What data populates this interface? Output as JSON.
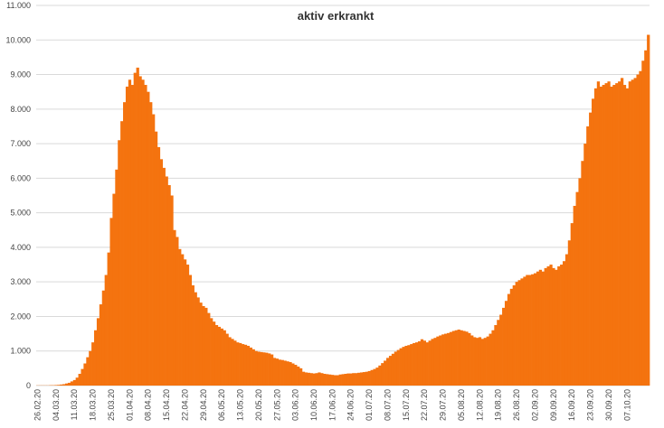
{
  "chart_data": {
    "type": "bar",
    "title": "aktiv erkrankt",
    "xlabel": "",
    "ylabel": "",
    "ylim": [
      0,
      11000
    ],
    "yticks": [
      0,
      1000,
      2000,
      3000,
      4000,
      5000,
      6000,
      7000,
      8000,
      9000,
      10000,
      11000
    ],
    "ytick_labels": [
      "0",
      "1.000",
      "2.000",
      "3.000",
      "4.000",
      "5.000",
      "6.000",
      "7.000",
      "8.000",
      "9.000",
      "10.000",
      "11.000"
    ],
    "xtick_labels": [
      "26.02.20",
      "04.03.20",
      "11.03.20",
      "18.03.20",
      "25.03.20",
      "01.04.20",
      "08.04.20",
      "15.04.20",
      "22.04.20",
      "29.04.20",
      "06.05.20",
      "13.05.20",
      "20.05.20",
      "27.05.20",
      "03.06.20",
      "10.06.20",
      "17.06.20",
      "24.06.20",
      "01.07.20",
      "08.07.20",
      "15.07.20",
      "22.07.20",
      "29.07.20",
      "05.08.20",
      "12.08.20",
      "19.08.20",
      "26.08.20",
      "02.09.20",
      "09.09.20",
      "16.09.20",
      "23.09.20",
      "30.09.20",
      "07.10.20"
    ],
    "grid": true,
    "legend": "none",
    "color": "#f4730f",
    "start_date": "26.02.20",
    "values": [
      5,
      5,
      5,
      5,
      5,
      10,
      10,
      15,
      20,
      30,
      40,
      60,
      80,
      120,
      160,
      230,
      340,
      480,
      640,
      820,
      1000,
      1250,
      1600,
      1950,
      2350,
      2750,
      3200,
      3850,
      4850,
      5550,
      6250,
      7100,
      7650,
      8200,
      8650,
      8850,
      8700,
      9050,
      9200,
      8950,
      8850,
      8700,
      8500,
      8200,
      7850,
      7350,
      6900,
      6550,
      6300,
      6050,
      5800,
      5500,
      4500,
      4300,
      3950,
      3800,
      3650,
      3500,
      3200,
      2900,
      2700,
      2550,
      2400,
      2300,
      2250,
      2100,
      1950,
      1850,
      1750,
      1700,
      1650,
      1600,
      1500,
      1400,
      1350,
      1300,
      1250,
      1230,
      1200,
      1180,
      1150,
      1100,
      1050,
      1000,
      980,
      970,
      960,
      950,
      930,
      900,
      800,
      780,
      750,
      740,
      720,
      700,
      680,
      640,
      600,
      550,
      500,
      400,
      380,
      370,
      360,
      350,
      360,
      380,
      360,
      340,
      330,
      320,
      310,
      300,
      300,
      320,
      330,
      340,
      350,
      350,
      360,
      360,
      370,
      380,
      390,
      400,
      420,
      450,
      480,
      520,
      580,
      650,
      720,
      800,
      860,
      920,
      980,
      1030,
      1080,
      1120,
      1150,
      1170,
      1200,
      1230,
      1250,
      1280,
      1340,
      1300,
      1250,
      1300,
      1350,
      1380,
      1420,
      1450,
      1480,
      1500,
      1520,
      1550,
      1580,
      1600,
      1620,
      1600,
      1580,
      1560,
      1520,
      1450,
      1400,
      1380,
      1400,
      1350,
      1380,
      1420,
      1500,
      1600,
      1750,
      1900,
      2050,
      2250,
      2450,
      2650,
      2800,
      2900,
      3000,
      3050,
      3100,
      3150,
      3200,
      3200,
      3220,
      3250,
      3300,
      3350,
      3300,
      3400,
      3450,
      3500,
      3400,
      3350,
      3450,
      3500,
      3600,
      3800,
      4200,
      4700,
      5200,
      5600,
      6000,
      6500,
      7000,
      7500,
      7900,
      8300,
      8600,
      8800,
      8650,
      8700,
      8750,
      8800,
      8650,
      8700,
      8750,
      8800,
      8900,
      8700,
      8600,
      8800,
      8850,
      8900,
      9000,
      9100,
      9400,
      9700,
      10150
    ]
  }
}
